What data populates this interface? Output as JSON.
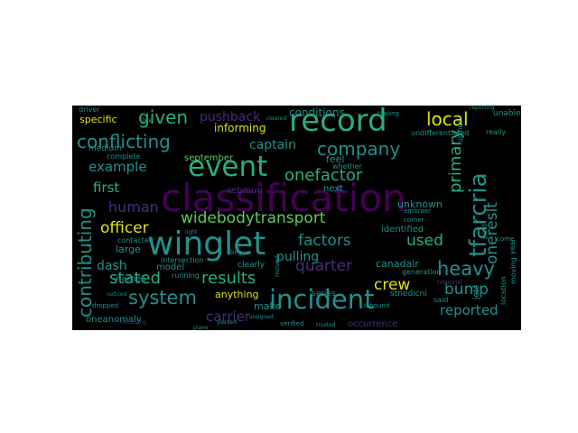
{
  "background": "#000000",
  "palette": {
    "purple": "#440154",
    "indigo": "#472d7b",
    "blue": "#3b528b",
    "steel": "#2c728e",
    "teal": "#21918c",
    "green": "#28ae80",
    "lime": "#5ec962",
    "yellow": "#dde318",
    "pale": "#b5de2b"
  },
  "words": [
    {
      "text": "classification",
      "color": "purple"
    },
    {
      "text": "incident",
      "color": "teal"
    },
    {
      "text": "winglet",
      "color": "teal"
    },
    {
      "text": "record",
      "color": "green"
    },
    {
      "text": "event",
      "color": "green"
    },
    {
      "text": "tfarcria",
      "color": "teal"
    },
    {
      "text": "widebodytransport",
      "color": "lime"
    },
    {
      "text": "conflicting",
      "color": "teal"
    },
    {
      "text": "company",
      "color": "teal"
    },
    {
      "text": "onefactor",
      "color": "green"
    },
    {
      "text": "contributing",
      "color": "teal"
    },
    {
      "text": "onereslt",
      "color": "teal"
    },
    {
      "text": "given",
      "color": "green"
    },
    {
      "text": "local",
      "color": "yellow"
    },
    {
      "text": "human",
      "color": "indigo"
    },
    {
      "text": "system",
      "color": "teal"
    },
    {
      "text": "stated",
      "color": "green"
    },
    {
      "text": "results",
      "color": "green"
    },
    {
      "text": "factors",
      "color": "teal"
    },
    {
      "text": "quarter",
      "color": "indigo"
    },
    {
      "text": "heavy",
      "color": "teal"
    },
    {
      "text": "primary",
      "color": "green"
    },
    {
      "text": "crew",
      "color": "yellow"
    },
    {
      "text": "officer",
      "color": "yellow"
    },
    {
      "text": "first",
      "color": "green"
    },
    {
      "text": "used",
      "color": "green"
    },
    {
      "text": "bump",
      "color": "teal"
    },
    {
      "text": "reported",
      "color": "teal"
    },
    {
      "text": "example",
      "color": "teal"
    },
    {
      "text": "captain",
      "color": "teal"
    },
    {
      "text": "pushback",
      "color": "indigo"
    },
    {
      "text": "pulling",
      "color": "teal"
    },
    {
      "text": "canadair",
      "color": "teal"
    },
    {
      "text": "carrier",
      "color": "indigo"
    },
    {
      "text": "dash",
      "color": "teal"
    },
    {
      "text": "conditions",
      "color": "teal"
    },
    {
      "text": "informing",
      "color": "yellow"
    },
    {
      "text": "specific",
      "color": "yellow"
    },
    {
      "text": "identified",
      "color": "teal"
    },
    {
      "text": "unknown",
      "color": "teal"
    },
    {
      "text": "anything",
      "color": "yellow"
    },
    {
      "text": "make",
      "color": "teal"
    },
    {
      "text": "oneanomaly",
      "color": "teal"
    },
    {
      "text": "september",
      "color": "lime"
    },
    {
      "text": "feel",
      "color": "teal"
    },
    {
      "text": "next",
      "color": "teal"
    },
    {
      "text": "rebmun",
      "color": "indigo"
    },
    {
      "text": "large",
      "color": "teal"
    },
    {
      "text": "names",
      "color": "teal"
    },
    {
      "text": "model",
      "color": "teal"
    },
    {
      "text": "series",
      "color": "teal"
    },
    {
      "text": "stnedicni",
      "color": "teal"
    },
    {
      "text": "jets",
      "color": "teal"
    },
    {
      "text": "year",
      "color": "teal"
    },
    {
      "text": "undifferentiated",
      "color": "teal"
    },
    {
      "text": "medium",
      "color": "teal"
    },
    {
      "text": "complete",
      "color": "teal"
    },
    {
      "text": "contacted",
      "color": "teal"
    },
    {
      "text": "clearly",
      "color": "teal"
    },
    {
      "text": "generation",
      "color": "teal"
    },
    {
      "text": "said",
      "color": "teal"
    },
    {
      "text": "location",
      "color": "teal"
    },
    {
      "text": "regional",
      "color": "indigo"
    },
    {
      "text": "unable",
      "color": "teal"
    },
    {
      "text": "really",
      "color": "teal"
    },
    {
      "text": "embraer",
      "color": "teal"
    },
    {
      "text": "corner",
      "color": "teal"
    },
    {
      "text": "inbound",
      "color": "teal"
    },
    {
      "text": "whether",
      "color": "teal"
    },
    {
      "text": "began",
      "color": "teal"
    },
    {
      "text": "running",
      "color": "teal"
    },
    {
      "text": "intersection",
      "color": "teal"
    },
    {
      "text": "verified",
      "color": "teal"
    },
    {
      "text": "occurrence",
      "color": "indigo"
    },
    {
      "text": "past",
      "color": "teal"
    },
    {
      "text": "moving",
      "color": "teal"
    },
    {
      "text": "moved",
      "color": "teal"
    },
    {
      "text": "come",
      "color": "teal"
    },
    {
      "text": "line",
      "color": "teal"
    },
    {
      "text": "driver",
      "color": "teal"
    },
    {
      "text": "taxiing",
      "color": "teal"
    },
    {
      "text": "plane",
      "color": "teal"
    },
    {
      "text": "light",
      "color": "teal"
    },
    {
      "text": "cleared",
      "color": "teal"
    },
    {
      "text": "noticed",
      "color": "teal"
    },
    {
      "text": "assigned",
      "color": "teal"
    },
    {
      "text": "further",
      "color": "teal"
    },
    {
      "text": "occurring",
      "color": "indigo"
    },
    {
      "text": "dropped",
      "color": "teal"
    },
    {
      "text": "trusted",
      "color": "teal"
    },
    {
      "text": "yielded",
      "color": "teal"
    },
    {
      "text": "reporting",
      "color": "teal"
    }
  ]
}
